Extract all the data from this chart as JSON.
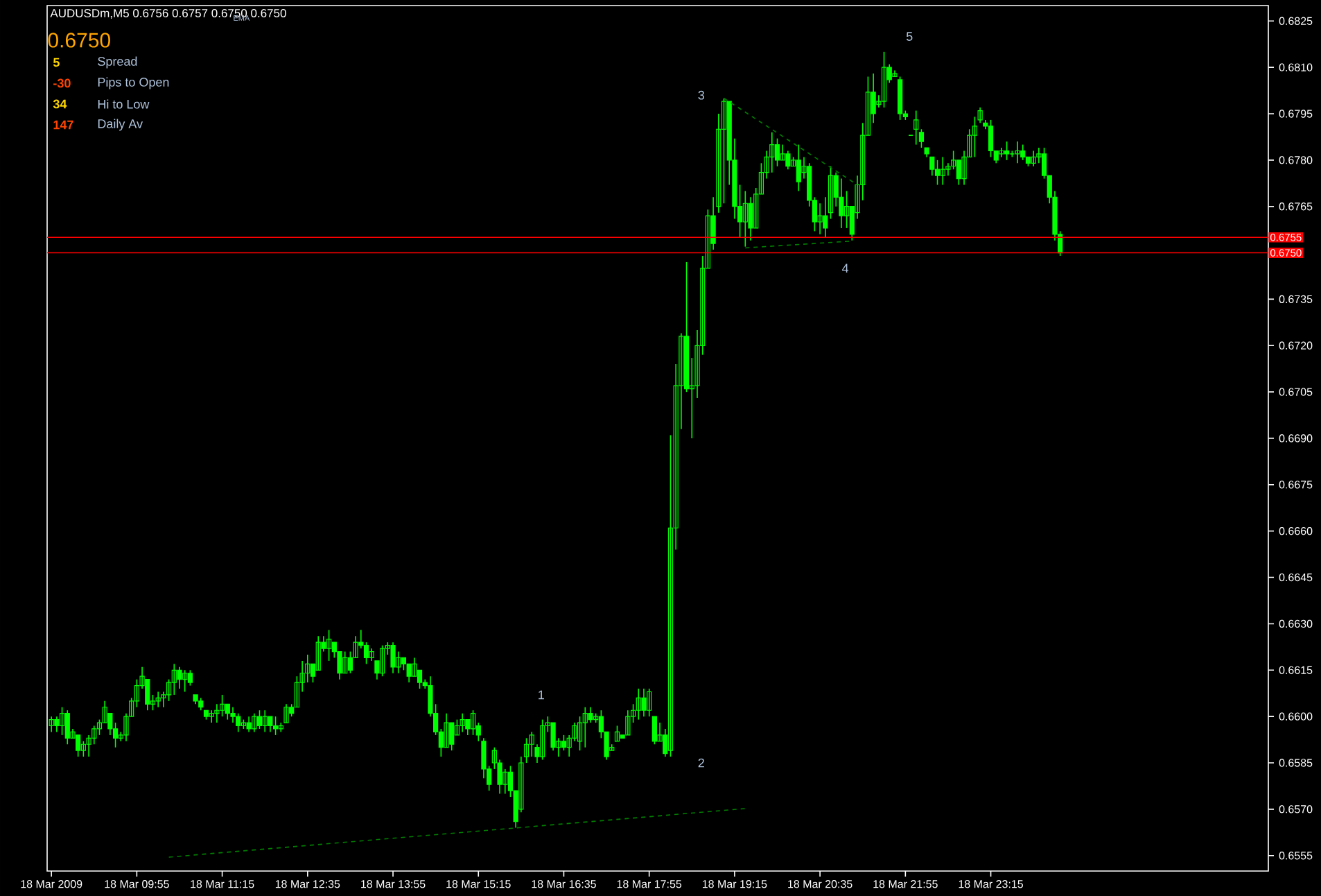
{
  "chart_data": {
    "type": "candlestick",
    "title": "AUDUSDm,M5  0.6756 0.6757 0.6750 0.6750",
    "color": "#00ff00",
    "x": [
      "2009-03-18T08:35",
      "2009-03-18T08:40",
      "2009-03-18T08:45",
      "2009-03-18T08:50",
      "2009-03-18T08:55",
      "2009-03-18T09:00",
      "2009-03-18T09:05",
      "2009-03-18T09:10",
      "2009-03-18T09:15",
      "2009-03-18T09:20",
      "2009-03-18T09:25",
      "2009-03-18T09:30",
      "2009-03-18T09:35",
      "2009-03-18T09:40",
      "2009-03-18T09:45",
      "2009-03-18T09:50",
      "2009-03-18T09:55",
      "2009-03-18T10:00",
      "2009-03-18T10:05",
      "2009-03-18T10:10",
      "2009-03-18T10:15",
      "2009-03-18T10:20",
      "2009-03-18T10:25",
      "2009-03-18T10:30",
      "2009-03-18T10:35",
      "2009-03-18T10:40",
      "2009-03-18T10:45",
      "2009-03-18T10:50",
      "2009-03-18T10:55",
      "2009-03-18T11:00",
      "2009-03-18T11:05",
      "2009-03-18T11:10",
      "2009-03-18T11:15",
      "2009-03-18T11:20",
      "2009-03-18T11:25",
      "2009-03-18T11:30",
      "2009-03-18T11:35",
      "2009-03-18T11:40",
      "2009-03-18T11:45",
      "2009-03-18T11:50",
      "2009-03-18T11:55",
      "2009-03-18T12:00",
      "2009-03-18T12:05",
      "2009-03-18T12:10",
      "2009-03-18T12:15",
      "2009-03-18T12:20",
      "2009-03-18T12:25",
      "2009-03-18T12:30",
      "2009-03-18T12:35",
      "2009-03-18T12:40",
      "2009-03-18T12:45",
      "2009-03-18T12:50",
      "2009-03-18T12:55",
      "2009-03-18T13:00",
      "2009-03-18T13:05",
      "2009-03-18T13:10",
      "2009-03-18T13:15",
      "2009-03-18T13:20",
      "2009-03-18T13:25",
      "2009-03-18T13:30",
      "2009-03-18T13:35",
      "2009-03-18T13:40",
      "2009-03-18T13:45",
      "2009-03-18T13:50",
      "2009-03-18T13:55",
      "2009-03-18T14:00",
      "2009-03-18T14:05",
      "2009-03-18T14:10",
      "2009-03-18T14:15",
      "2009-03-18T14:20",
      "2009-03-18T14:25",
      "2009-03-18T14:30",
      "2009-03-18T14:35",
      "2009-03-18T14:40",
      "2009-03-18T14:45",
      "2009-03-18T14:50",
      "2009-03-18T14:55",
      "2009-03-18T15:00",
      "2009-03-18T15:05",
      "2009-03-18T15:10",
      "2009-03-18T15:15",
      "2009-03-18T15:20",
      "2009-03-18T15:25",
      "2009-03-18T15:30",
      "2009-03-18T15:35",
      "2009-03-18T15:40",
      "2009-03-18T15:45",
      "2009-03-18T15:50",
      "2009-03-18T15:55",
      "2009-03-18T16:00",
      "2009-03-18T16:05",
      "2009-03-18T16:10",
      "2009-03-18T16:15",
      "2009-03-18T16:20",
      "2009-03-18T16:25",
      "2009-03-18T16:30",
      "2009-03-18T16:35",
      "2009-03-18T16:40",
      "2009-03-18T16:45",
      "2009-03-18T16:50",
      "2009-03-18T16:55",
      "2009-03-18T17:00",
      "2009-03-18T17:05",
      "2009-03-18T17:10",
      "2009-03-18T17:15",
      "2009-03-18T17:20",
      "2009-03-18T17:25",
      "2009-03-18T17:30",
      "2009-03-18T17:35",
      "2009-03-18T17:40",
      "2009-03-18T17:45",
      "2009-03-18T17:50",
      "2009-03-18T17:55",
      "2009-03-18T18:00",
      "2009-03-18T18:05",
      "2009-03-18T18:10",
      "2009-03-18T18:15",
      "2009-03-18T18:20",
      "2009-03-18T18:25",
      "2009-03-18T18:30",
      "2009-03-18T18:35",
      "2009-03-18T18:40",
      "2009-03-18T18:45",
      "2009-03-18T18:50",
      "2009-03-18T18:55",
      "2009-03-18T19:00",
      "2009-03-18T19:05",
      "2009-03-18T19:10",
      "2009-03-18T19:15",
      "2009-03-18T19:20",
      "2009-03-18T19:25",
      "2009-03-18T19:30",
      "2009-03-18T19:35",
      "2009-03-18T19:40",
      "2009-03-18T19:45",
      "2009-03-18T19:50",
      "2009-03-18T19:55",
      "2009-03-18T20:00",
      "2009-03-18T20:05",
      "2009-03-18T20:10",
      "2009-03-18T20:15",
      "2009-03-18T20:20",
      "2009-03-18T20:25",
      "2009-03-18T20:30",
      "2009-03-18T20:35",
      "2009-03-18T20:40",
      "2009-03-18T20:45",
      "2009-03-18T20:50",
      "2009-03-18T20:55",
      "2009-03-18T21:00",
      "2009-03-18T21:05",
      "2009-03-18T21:10",
      "2009-03-18T21:15",
      "2009-03-18T21:20",
      "2009-03-18T21:25",
      "2009-03-18T21:30",
      "2009-03-18T21:35",
      "2009-03-18T21:40",
      "2009-03-18T21:45",
      "2009-03-18T21:50",
      "2009-03-18T21:55",
      "2009-03-18T22:00",
      "2009-03-18T22:05",
      "2009-03-18T22:10",
      "2009-03-18T22:15",
      "2009-03-18T22:20",
      "2009-03-18T22:25",
      "2009-03-18T22:30",
      "2009-03-18T22:35",
      "2009-03-18T22:40",
      "2009-03-18T22:45",
      "2009-03-18T22:50",
      "2009-03-18T22:55",
      "2009-03-18T23:00",
      "2009-03-18T23:05",
      "2009-03-18T23:10",
      "2009-03-18T23:15",
      "2009-03-18T23:20",
      "2009-03-18T23:25",
      "2009-03-18T23:30",
      "2009-03-18T23:35",
      "2009-03-18T23:40",
      "2009-03-18T23:45",
      "2009-03-18T23:50",
      "2009-03-18T23:55",
      "2009-03-19T00:00",
      "2009-03-19T00:05",
      "2009-03-19T00:10",
      "2009-03-19T00:15",
      "2009-03-19T00:20"
    ],
    "ohlc": [
      [
        0.6597,
        0.66,
        0.6595,
        0.6599
      ],
      [
        0.6599,
        0.66,
        0.6595,
        0.6597
      ],
      [
        0.6597,
        0.6603,
        0.6594,
        0.6601
      ],
      [
        0.6601,
        0.6602,
        0.6591,
        0.6593
      ],
      [
        0.6593,
        0.6596,
        0.6593,
        0.6595
      ],
      [
        0.6594,
        0.6594,
        0.6587,
        0.6589
      ],
      [
        0.6589,
        0.6592,
        0.6587,
        0.6591
      ],
      [
        0.6591,
        0.6594,
        0.6587,
        0.6593
      ],
      [
        0.6593,
        0.6597,
        0.6591,
        0.6596
      ],
      [
        0.6596,
        0.6599,
        0.6594,
        0.6598
      ],
      [
        0.6598,
        0.6605,
        0.6598,
        0.6603
      ],
      [
        0.6601,
        0.6601,
        0.6594,
        0.6596
      ],
      [
        0.6596,
        0.6598,
        0.659,
        0.6593
      ],
      [
        0.6593,
        0.6595,
        0.6592,
        0.6594
      ],
      [
        0.6594,
        0.6601,
        0.6592,
        0.66
      ],
      [
        0.66,
        0.6606,
        0.66,
        0.6605
      ],
      [
        0.6605,
        0.6612,
        0.6603,
        0.661
      ],
      [
        0.661,
        0.6616,
        0.6609,
        0.6613
      ],
      [
        0.6612,
        0.6612,
        0.6602,
        0.6604
      ],
      [
        0.6604,
        0.6607,
        0.6602,
        0.6605
      ],
      [
        0.6605,
        0.6608,
        0.6603,
        0.6606
      ],
      [
        0.6606,
        0.6608,
        0.6603,
        0.6607
      ],
      [
        0.6607,
        0.6612,
        0.6605,
        0.6611
      ],
      [
        0.6611,
        0.6617,
        0.6607,
        0.6615
      ],
      [
        0.6615,
        0.6616,
        0.6609,
        0.6612
      ],
      [
        0.6612,
        0.6615,
        0.6608,
        0.6614
      ],
      [
        0.6614,
        0.6615,
        0.661,
        0.6611
      ],
      [
        0.6607,
        0.6607,
        0.6604,
        0.6605
      ],
      [
        0.6605,
        0.6606,
        0.6602,
        0.6603
      ],
      [
        0.6602,
        0.6602,
        0.6599,
        0.66
      ],
      [
        0.66,
        0.6602,
        0.6598,
        0.6601
      ],
      [
        0.6601,
        0.6604,
        0.6598,
        0.6602
      ],
      [
        0.6602,
        0.6607,
        0.66,
        0.6604
      ],
      [
        0.6604,
        0.6604,
        0.6599,
        0.6601
      ],
      [
        0.6601,
        0.6603,
        0.6598,
        0.66
      ],
      [
        0.66,
        0.6601,
        0.6595,
        0.6597
      ],
      [
        0.6597,
        0.6599,
        0.6596,
        0.6598
      ],
      [
        0.6598,
        0.66,
        0.6595,
        0.6596
      ],
      [
        0.6596,
        0.6601,
        0.6595,
        0.66
      ],
      [
        0.66,
        0.6602,
        0.6596,
        0.6597
      ],
      [
        0.6597,
        0.6602,
        0.6595,
        0.66
      ],
      [
        0.66,
        0.66,
        0.6595,
        0.6597
      ],
      [
        0.6597,
        0.66,
        0.6594,
        0.6596
      ],
      [
        0.6596,
        0.6598,
        0.6595,
        0.6597
      ],
      [
        0.6598,
        0.6604,
        0.6598,
        0.6603
      ],
      [
        0.6603,
        0.6604,
        0.66,
        0.6601
      ],
      [
        0.6603,
        0.6613,
        0.6603,
        0.6611
      ],
      [
        0.6611,
        0.6618,
        0.6608,
        0.6614
      ],
      [
        0.6614,
        0.662,
        0.6611,
        0.6617
      ],
      [
        0.6617,
        0.6617,
        0.6611,
        0.6613
      ],
      [
        0.6615,
        0.6626,
        0.6615,
        0.6624
      ],
      [
        0.6624,
        0.6626,
        0.6621,
        0.6622
      ],
      [
        0.6622,
        0.6628,
        0.6618,
        0.6625
      ],
      [
        0.6624,
        0.6624,
        0.6619,
        0.6621
      ],
      [
        0.6621,
        0.6621,
        0.6612,
        0.6614
      ],
      [
        0.6614,
        0.6621,
        0.6614,
        0.6619
      ],
      [
        0.6619,
        0.6621,
        0.6614,
        0.6615
      ],
      [
        0.6619,
        0.6626,
        0.6619,
        0.6624
      ],
      [
        0.6624,
        0.6628,
        0.6622,
        0.6623
      ],
      [
        0.6623,
        0.6624,
        0.6617,
        0.6619
      ],
      [
        0.6619,
        0.6622,
        0.6618,
        0.6621
      ],
      [
        0.6618,
        0.6618,
        0.6612,
        0.6614
      ],
      [
        0.6614,
        0.6623,
        0.6613,
        0.6622
      ],
      [
        0.6622,
        0.6624,
        0.662,
        0.6623
      ],
      [
        0.6623,
        0.6624,
        0.6614,
        0.6616
      ],
      [
        0.6616,
        0.6621,
        0.6614,
        0.6619
      ],
      [
        0.6619,
        0.6619,
        0.6615,
        0.6617
      ],
      [
        0.6617,
        0.6617,
        0.6611,
        0.6613
      ],
      [
        0.6613,
        0.6619,
        0.6613,
        0.6617
      ],
      [
        0.6615,
        0.6615,
        0.6609,
        0.6611
      ],
      [
        0.6611,
        0.6612,
        0.6609,
        0.661
      ],
      [
        0.661,
        0.6613,
        0.66,
        0.6601
      ],
      [
        0.6601,
        0.6604,
        0.6594,
        0.6595
      ],
      [
        0.6595,
        0.6596,
        0.6587,
        0.659
      ],
      [
        0.659,
        0.6601,
        0.659,
        0.6598
      ],
      [
        0.6598,
        0.6598,
        0.6589,
        0.6591
      ],
      [
        0.6594,
        0.6599,
        0.6594,
        0.6597
      ],
      [
        0.6597,
        0.6601,
        0.6595,
        0.6599
      ],
      [
        0.6599,
        0.6599,
        0.6594,
        0.6596
      ],
      [
        0.6596,
        0.6602,
        0.6594,
        0.6601
      ],
      [
        0.6597,
        0.6598,
        0.6592,
        0.6594
      ],
      [
        0.6592,
        0.6593,
        0.658,
        0.6583
      ],
      [
        0.6583,
        0.6584,
        0.6576,
        0.6578
      ],
      [
        0.6585,
        0.659,
        0.6583,
        0.6589
      ],
      [
        0.6585,
        0.6586,
        0.6575,
        0.6578
      ],
      [
        0.6578,
        0.6583,
        0.6575,
        0.6582
      ],
      [
        0.6582,
        0.6584,
        0.6574,
        0.6576
      ],
      [
        0.6576,
        0.6576,
        0.6564,
        0.6566
      ],
      [
        0.657,
        0.6587,
        0.6569,
        0.6585
      ],
      [
        0.6587,
        0.6593,
        0.6585,
        0.6591
      ],
      [
        0.6591,
        0.6595,
        0.6587,
        0.6594
      ],
      [
        0.659,
        0.6591,
        0.6585,
        0.6587
      ],
      [
        0.6587,
        0.6599,
        0.6586,
        0.6597
      ],
      [
        0.6597,
        0.66,
        0.6595,
        0.6598
      ],
      [
        0.6598,
        0.6598,
        0.6589,
        0.659
      ],
      [
        0.659,
        0.6593,
        0.6587,
        0.6592
      ],
      [
        0.6592,
        0.6594,
        0.6589,
        0.659
      ],
      [
        0.659,
        0.6594,
        0.6587,
        0.6593
      ],
      [
        0.6593,
        0.6598,
        0.6592,
        0.6597
      ],
      [
        0.6592,
        0.66,
        0.6589,
        0.6598
      ],
      [
        0.6598,
        0.6603,
        0.659,
        0.6601
      ],
      [
        0.6601,
        0.6603,
        0.6598,
        0.6599
      ],
      [
        0.6599,
        0.6601,
        0.6598,
        0.66
      ],
      [
        0.66,
        0.6602,
        0.6593,
        0.6595
      ],
      [
        0.6595,
        0.6595,
        0.6586,
        0.6587
      ],
      [
        0.6589,
        0.6591,
        0.6589,
        0.659
      ],
      [
        0.6592,
        0.6597,
        0.6592,
        0.6595
      ],
      [
        0.6594,
        0.6594,
        0.6593,
        0.6593
      ],
      [
        0.6594,
        0.6602,
        0.6594,
        0.66
      ],
      [
        0.66,
        0.6604,
        0.6598,
        0.6602
      ],
      [
        0.6602,
        0.6609,
        0.6599,
        0.6606
      ],
      [
        0.6606,
        0.6609,
        0.66,
        0.6602
      ],
      [
        0.6602,
        0.6609,
        0.66,
        0.6608
      ],
      [
        0.66,
        0.66,
        0.6591,
        0.6592
      ],
      [
        0.6592,
        0.6598,
        0.6592,
        0.6594
      ],
      [
        0.6594,
        0.6596,
        0.6587,
        0.6588
      ],
      [
        0.6589,
        0.6691,
        0.6587,
        0.6661
      ],
      [
        0.6661,
        0.6714,
        0.6654,
        0.6707
      ],
      [
        0.6707,
        0.6724,
        0.6693,
        0.6723
      ],
      [
        0.6723,
        0.6747,
        0.6705,
        0.6706
      ],
      [
        0.6706,
        0.6716,
        0.669,
        0.6707
      ],
      [
        0.6707,
        0.6725,
        0.6703,
        0.672
      ],
      [
        0.672,
        0.6749,
        0.6717,
        0.6745
      ],
      [
        0.6745,
        0.6764,
        0.6745,
        0.6762
      ],
      [
        0.6762,
        0.6768,
        0.6751,
        0.6753
      ],
      [
        0.6765,
        0.6795,
        0.6763,
        0.679
      ],
      [
        0.679,
        0.68,
        0.6766,
        0.6799
      ],
      [
        0.6799,
        0.6799,
        0.6772,
        0.678
      ],
      [
        0.678,
        0.6787,
        0.6761,
        0.6765
      ],
      [
        0.6765,
        0.6772,
        0.6755,
        0.676
      ],
      [
        0.676,
        0.677,
        0.6752,
        0.6766
      ],
      [
        0.6766,
        0.6768,
        0.6754,
        0.6758
      ],
      [
        0.6758,
        0.6771,
        0.6758,
        0.6769
      ],
      [
        0.6769,
        0.6779,
        0.6769,
        0.6776
      ],
      [
        0.6776,
        0.6783,
        0.6774,
        0.6781
      ],
      [
        0.6781,
        0.6789,
        0.6776,
        0.6785
      ],
      [
        0.6785,
        0.6787,
        0.6778,
        0.678
      ],
      [
        0.678,
        0.6785,
        0.678,
        0.6782
      ],
      [
        0.6782,
        0.6783,
        0.6777,
        0.6778
      ],
      [
        0.6778,
        0.6781,
        0.6778,
        0.678
      ],
      [
        0.678,
        0.6785,
        0.677,
        0.6773
      ],
      [
        0.6776,
        0.6781,
        0.6774,
        0.6778
      ],
      [
        0.6778,
        0.6779,
        0.6765,
        0.6767
      ],
      [
        0.6767,
        0.6768,
        0.6757,
        0.676
      ],
      [
        0.676,
        0.6766,
        0.6756,
        0.6762
      ],
      [
        0.6762,
        0.6768,
        0.6755,
        0.6758
      ],
      [
        0.6763,
        0.6778,
        0.6761,
        0.6775
      ],
      [
        0.6775,
        0.6776,
        0.6765,
        0.6768
      ],
      [
        0.6768,
        0.6774,
        0.6758,
        0.6762
      ],
      [
        0.6762,
        0.677,
        0.6758,
        0.6765
      ],
      [
        0.6765,
        0.6765,
        0.6754,
        0.6756
      ],
      [
        0.6763,
        0.6775,
        0.6761,
        0.6772
      ],
      [
        0.6772,
        0.6792,
        0.6767,
        0.6788
      ],
      [
        0.6788,
        0.6807,
        0.6788,
        0.6802
      ],
      [
        0.6802,
        0.6808,
        0.6792,
        0.6795
      ],
      [
        0.6798,
        0.6801,
        0.6797,
        0.6799
      ],
      [
        0.6799,
        0.6815,
        0.6797,
        0.681
      ],
      [
        0.681,
        0.6811,
        0.6805,
        0.6806
      ],
      [
        0.6807,
        0.6809,
        0.6807,
        0.6808
      ],
      [
        0.6806,
        0.6807,
        0.6793,
        0.6795
      ],
      [
        0.6795,
        0.6796,
        0.6793,
        0.6794
      ],
      [
        0.6788,
        0.6788,
        0.6788,
        0.6788
      ],
      [
        0.679,
        0.6796,
        0.6785,
        0.6793
      ],
      [
        0.6789,
        0.679,
        0.6784,
        0.6786
      ],
      [
        0.6784,
        0.6784,
        0.6781,
        0.6782
      ],
      [
        0.6781,
        0.6781,
        0.6775,
        0.6777
      ],
      [
        0.6777,
        0.678,
        0.6772,
        0.6775
      ],
      [
        0.6775,
        0.6781,
        0.6772,
        0.6777
      ],
      [
        0.6777,
        0.6779,
        0.6775,
        0.6778
      ],
      [
        0.6778,
        0.6783,
        0.6777,
        0.678
      ],
      [
        0.678,
        0.678,
        0.6772,
        0.6774
      ],
      [
        0.6774,
        0.6783,
        0.6772,
        0.6781
      ],
      [
        0.6781,
        0.679,
        0.6781,
        0.6788
      ],
      [
        0.6788,
        0.6794,
        0.6781,
        0.6791
      ],
      [
        0.6793,
        0.6797,
        0.6792,
        0.6796
      ],
      [
        0.6792,
        0.6793,
        0.679,
        0.6791
      ],
      [
        0.6791,
        0.6793,
        0.6781,
        0.6783
      ],
      [
        0.6783,
        0.6783,
        0.6779,
        0.678
      ],
      [
        0.6782,
        0.6784,
        0.6781,
        0.6783
      ],
      [
        0.6783,
        0.6786,
        0.678,
        0.6782
      ],
      [
        0.6782,
        0.6783,
        0.6781,
        0.6782
      ],
      [
        0.6782,
        0.6786,
        0.6779,
        0.6783
      ],
      [
        0.6783,
        0.6785,
        0.678,
        0.6781
      ],
      [
        0.6781,
        0.6781,
        0.6778,
        0.6779
      ],
      [
        0.6779,
        0.6783,
        0.6778,
        0.6781
      ],
      [
        0.6781,
        0.6784,
        0.6779,
        0.6782
      ],
      [
        0.6782,
        0.6784,
        0.6774,
        0.6775
      ],
      [
        0.6775,
        0.6775,
        0.6766,
        0.6768
      ],
      [
        0.6768,
        0.677,
        0.6754,
        0.6756
      ],
      [
        0.6756,
        0.6757,
        0.6749,
        0.675
      ]
    ],
    "series": [
      {
        "type": "line",
        "color": "#008000",
        "line_style": "dashed",
        "x": [
          "2009-03-18T10:25",
          "2009-03-18T19:25"
        ],
        "values": [
          0.65545,
          0.65702
        ]
      },
      {
        "type": "line",
        "color": "#008000",
        "line_style": "dashed",
        "x": [
          "2009-03-18T19:05",
          "2009-03-18T21:10"
        ],
        "values": [
          0.68,
          0.6772
        ]
      },
      {
        "type": "line",
        "color": "#008000",
        "line_style": "dashed",
        "x": [
          "2009-03-18T19:25",
          "2009-03-18T21:05"
        ],
        "values": [
          0.67516,
          0.67538
        ]
      }
    ],
    "xlim": [
      "2009-03-18T08:31",
      "2009-03-19T03:35"
    ],
    "xticks": [
      {
        "value": "2009-03-18T08:35",
        "label": "18 Mar 2009"
      },
      {
        "value": "2009-03-18T09:55",
        "label": "18 Mar 09:55"
      },
      {
        "value": "2009-03-18T11:15",
        "label": "18 Mar 11:15"
      },
      {
        "value": "2009-03-18T12:35",
        "label": "18 Mar 12:35"
      },
      {
        "value": "2009-03-18T13:55",
        "label": "18 Mar 13:55"
      },
      {
        "value": "2009-03-18T15:15",
        "label": "18 Mar 15:15"
      },
      {
        "value": "2009-03-18T16:35",
        "label": "18 Mar 16:35"
      },
      {
        "value": "2009-03-18T17:55",
        "label": "18 Mar 17:55"
      },
      {
        "value": "2009-03-18T19:15",
        "label": "18 Mar 19:15"
      },
      {
        "value": "2009-03-18T20:35",
        "label": "18 Mar 20:35"
      },
      {
        "value": "2009-03-18T21:55",
        "label": "18 Mar 21:55"
      },
      {
        "value": "2009-03-18T23:15",
        "label": "18 Mar 23:15"
      }
    ],
    "ylim": [
      0.655,
      0.683
    ],
    "yticks": [
      0.6825,
      {
        "value": 0.681,
        "label": "0.6810"
      },
      0.6795,
      {
        "value": 0.678,
        "label": "0.6780"
      },
      0.6765,
      {
        "value": 0.675,
        "label": null
      },
      0.6735,
      {
        "value": 0.672,
        "label": "0.6720"
      },
      0.6705,
      {
        "value": 0.669,
        "label": "0.6690"
      },
      0.6675,
      {
        "value": 0.666,
        "label": "0.6660"
      },
      0.6645,
      {
        "value": 0.663,
        "label": "0.6630"
      },
      0.6615,
      {
        "value": 0.66,
        "label": "0.6600"
      },
      0.6585,
      {
        "value": 0.657,
        "label": "0.6570"
      },
      0.6555
    ],
    "ref_lines": [
      {
        "axis": "y",
        "value": 0.6755,
        "label": "0.6755",
        "color": "#ff0000"
      },
      {
        "axis": "y",
        "value": 0.675,
        "label": "0.6750",
        "color": "#ff0000"
      }
    ],
    "annotations": [
      "EMA",
      "0.6750",
      "5",
      "Spread",
      "-30",
      "Pips to Open",
      "34",
      "Hi to Low",
      "147",
      "Daily Av",
      "1",
      "2",
      "3",
      "4",
      "5"
    ]
  }
}
